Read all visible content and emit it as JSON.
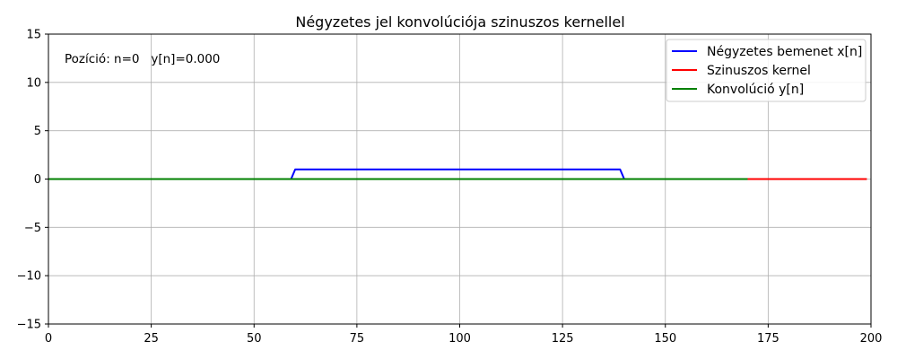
{
  "chart_data": {
    "type": "line",
    "title": "Négyzetes jel konvolúciója szinuszos kernellel",
    "xlabel": "",
    "ylabel": "",
    "xlim": [
      0,
      200
    ],
    "ylim": [
      -15,
      15
    ],
    "x_ticks": [
      0,
      25,
      50,
      75,
      100,
      125,
      150,
      175,
      200
    ],
    "x_tick_labels": [
      "0",
      "25",
      "50",
      "75",
      "100",
      "125",
      "150",
      "175",
      "200"
    ],
    "y_ticks": [
      15,
      10,
      5,
      0,
      -5,
      -10,
      -15
    ],
    "y_tick_labels": [
      "15",
      "10",
      "5",
      "0",
      "−5",
      "−10",
      "−15"
    ],
    "grid": true,
    "legend_position": "top-right",
    "annotation": "Pozíció: n=0   y[n]=0.000",
    "series": [
      {
        "name": "Négyzetes bemenet x[n]",
        "color": "#0000ff",
        "x": [
          0,
          59,
          60,
          139,
          140,
          170
        ],
        "y": [
          0,
          0,
          1,
          1,
          0,
          0
        ]
      },
      {
        "name": "Szinuszos kernel",
        "color": "#ff0000",
        "x": [
          170,
          199
        ],
        "y": [
          0,
          0
        ]
      },
      {
        "name": "Konvolúció y[n]",
        "color": "#008000",
        "x": [
          0,
          170
        ],
        "y": [
          0,
          0
        ]
      }
    ]
  }
}
